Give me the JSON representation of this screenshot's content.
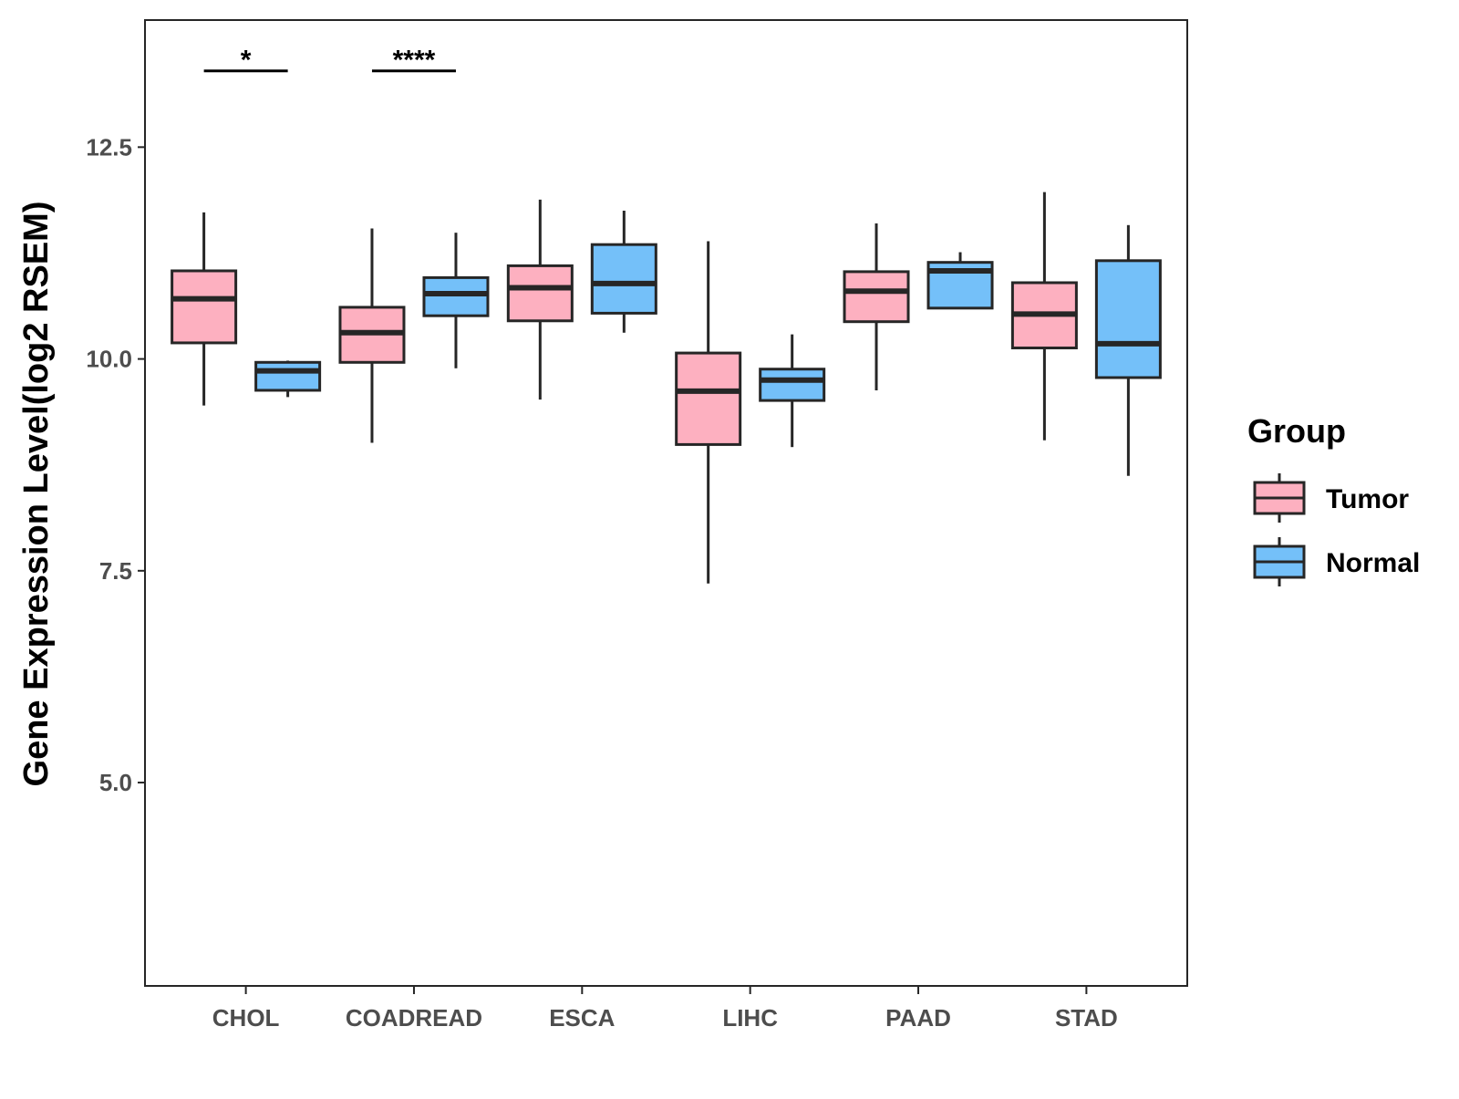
{
  "chart_data": {
    "type": "boxplot",
    "title": "",
    "xlabel": "",
    "ylabel": "Gene Expression Level(log2 RSEM)",
    "ylim": [
      2.6,
      14.0
    ],
    "yticks": [
      5.0,
      7.5,
      10.0,
      12.5
    ],
    "ytick_labels": [
      "5.0",
      "7.5",
      "10.0",
      "12.5"
    ],
    "grid": false,
    "categories": [
      "CHOL",
      "COADREAD",
      "ESCA",
      "LIHC",
      "PAAD",
      "STAD"
    ],
    "series": [
      {
        "name": "Tumor",
        "color": "#FDB0C0",
        "boxes": [
          {
            "min": 9.45,
            "q1": 10.19,
            "median": 10.71,
            "q3": 11.04,
            "max": 11.73
          },
          {
            "min": 9.01,
            "q1": 9.96,
            "median": 10.31,
            "q3": 10.61,
            "max": 11.54
          },
          {
            "min": 9.52,
            "q1": 10.45,
            "median": 10.84,
            "q3": 11.1,
            "max": 11.88
          },
          {
            "min": 7.35,
            "q1": 8.99,
            "median": 9.62,
            "q3": 10.07,
            "max": 11.39
          },
          {
            "min": 9.63,
            "q1": 10.44,
            "median": 10.8,
            "q3": 11.03,
            "max": 11.6
          },
          {
            "min": 9.04,
            "q1": 10.13,
            "median": 10.53,
            "q3": 10.9,
            "max": 11.97
          }
        ]
      },
      {
        "name": "Normal",
        "color": "#74C0F9",
        "boxes": [
          {
            "min": 9.55,
            "q1": 9.63,
            "median": 9.86,
            "q3": 9.96,
            "max": 9.98
          },
          {
            "min": 9.89,
            "q1": 10.51,
            "median": 10.77,
            "q3": 10.96,
            "max": 11.49
          },
          {
            "min": 10.31,
            "q1": 10.54,
            "median": 10.89,
            "q3": 11.35,
            "max": 11.75
          },
          {
            "min": 8.96,
            "q1": 9.51,
            "median": 9.75,
            "q3": 9.88,
            "max": 10.29
          },
          {
            "min": 10.6,
            "q1": 10.6,
            "median": 11.04,
            "q3": 11.14,
            "max": 11.26
          },
          {
            "min": 8.62,
            "q1": 9.78,
            "median": 10.18,
            "q3": 11.16,
            "max": 11.58
          }
        ]
      }
    ],
    "annotations": [
      {
        "category": "CHOL",
        "label": "*",
        "y": 13.4
      },
      {
        "category": "COADREAD",
        "label": "****",
        "y": 13.4
      }
    ],
    "legend": {
      "title": "Group",
      "position": "right",
      "entries": [
        "Tumor",
        "Normal"
      ]
    }
  },
  "colors": {
    "tumor_fill": "#FDB0C0",
    "normal_fill": "#74C0F9",
    "stroke": "#262626",
    "tick_text": "#4d4d4d",
    "panel_border": "#262626"
  }
}
